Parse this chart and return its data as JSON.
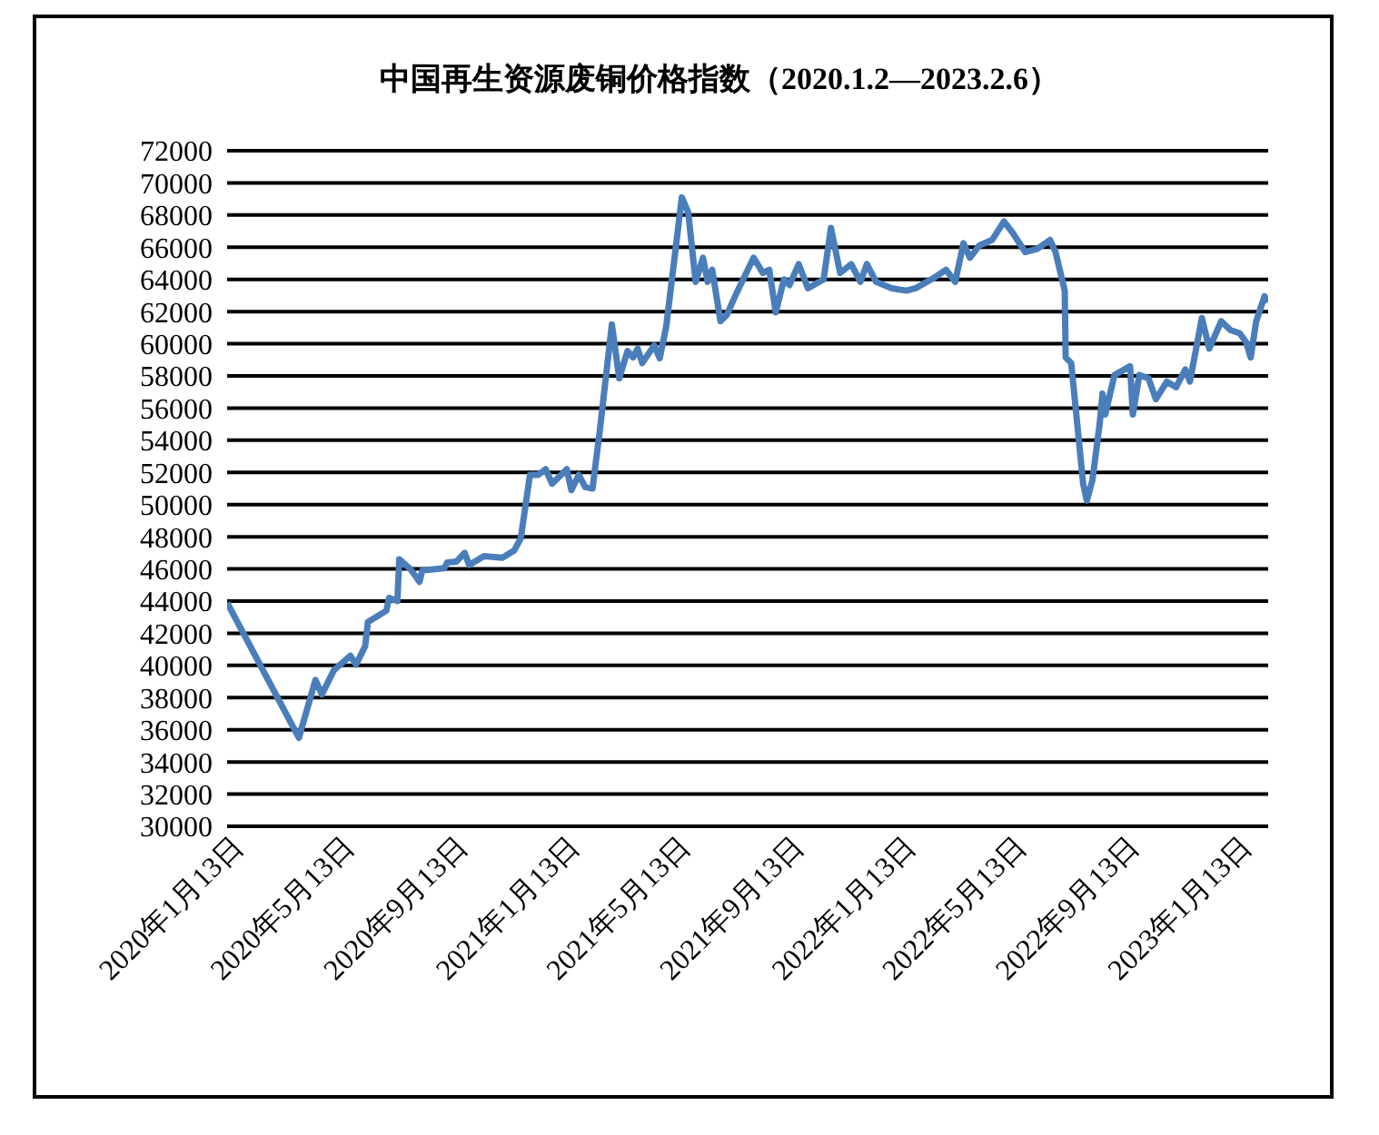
{
  "chart_data": {
    "type": "line",
    "title": "中国再生资源废铜价格指数（2020.1.2—2023.2.6）",
    "x": [
      "2020-01-02",
      "2020-03-20",
      "2020-04-07",
      "2020-04-14",
      "2020-04-27",
      "2020-05-15",
      "2020-05-21",
      "2020-05-31",
      "2020-06-03",
      "2020-06-23",
      "2020-06-26",
      "2020-07-05",
      "2020-07-07",
      "2020-07-19",
      "2020-07-29",
      "2020-08-01",
      "2020-08-25",
      "2020-08-28",
      "2020-09-07",
      "2020-09-16",
      "2020-09-21",
      "2020-10-07",
      "2020-10-27",
      "2020-11-09",
      "2020-11-16",
      "2020-11-26",
      "2020-12-05",
      "2020-12-13",
      "2020-12-20",
      "2021-01-05",
      "2021-01-10",
      "2021-01-18",
      "2021-01-25",
      "2021-02-02",
      "2021-02-10",
      "2021-02-23",
      "2021-03-03",
      "2021-03-12",
      "2021-03-18",
      "2021-03-23",
      "2021-03-28",
      "2021-04-10",
      "2021-04-16",
      "2021-04-23",
      "2021-05-10",
      "2021-05-17",
      "2021-05-25",
      "2021-06-02",
      "2021-06-07",
      "2021-06-12",
      "2021-06-21",
      "2021-06-28",
      "2021-07-08",
      "2021-07-27",
      "2021-08-06",
      "2021-08-13",
      "2021-08-20",
      "2021-08-29",
      "2021-09-04",
      "2021-09-14",
      "2021-09-24",
      "2021-10-11",
      "2021-10-19",
      "2021-10-29",
      "2021-11-10",
      "2021-11-20",
      "2021-11-27",
      "2021-12-07",
      "2021-12-24",
      "2022-01-09",
      "2022-01-19",
      "2022-02-08",
      "2022-02-21",
      "2022-03-03",
      "2022-03-12",
      "2022-03-19",
      "2022-03-29",
      "2022-04-12",
      "2022-04-25",
      "2022-05-05",
      "2022-05-18",
      "2022-05-31",
      "2022-06-14",
      "2022-06-20",
      "2022-06-30",
      "2022-07-01",
      "2022-07-07",
      "2022-07-20",
      "2022-07-24",
      "2022-07-30",
      "2022-08-07",
      "2022-08-10",
      "2022-08-13",
      "2022-08-23",
      "2022-09-09",
      "2022-09-12",
      "2022-09-19",
      "2022-09-29",
      "2022-10-07",
      "2022-10-19",
      "2022-10-29",
      "2022-11-08",
      "2022-11-13",
      "2022-11-26",
      "2022-12-04",
      "2022-12-17",
      "2022-12-27",
      "2023-01-06",
      "2023-01-13",
      "2023-01-18",
      "2023-01-24",
      "2023-02-02",
      "2023-02-06"
    ],
    "values": [
      43900,
      35500,
      39100,
      38200,
      39700,
      40600,
      40050,
      41200,
      42700,
      43400,
      44200,
      44000,
      46600,
      46000,
      45200,
      45900,
      46050,
      46400,
      46450,
      47000,
      46250,
      46800,
      46700,
      47150,
      47900,
      51850,
      51850,
      52200,
      51300,
      52200,
      50900,
      51850,
      51100,
      51000,
      54650,
      61200,
      57850,
      59550,
      59150,
      59700,
      58800,
      59900,
      59100,
      61050,
      69100,
      68150,
      63850,
      65350,
      63850,
      64600,
      61400,
      61800,
      63100,
      65350,
      64400,
      64600,
      61950,
      64000,
      63650,
      64950,
      63450,
      64000,
      67200,
      64400,
      64950,
      63850,
      64950,
      63850,
      63450,
      63300,
      63450,
      64100,
      64600,
      63850,
      66250,
      65350,
      66100,
      66450,
      67600,
      66850,
      65700,
      65900,
      66450,
      65700,
      63300,
      59150,
      58800,
      51300,
      50250,
      51500,
      55050,
      56900,
      55600,
      58050,
      58600,
      55600,
      58050,
      57850,
      56550,
      57650,
      57300,
      58400,
      57650,
      61600,
      59700,
      61400,
      60850,
      60650,
      60100,
      59150,
      61400,
      62950,
      62600
    ],
    "color": "#4a7ebb",
    "xlim": [
      "2020-01-02",
      "2023-02-06"
    ],
    "xticks": [
      {
        "value": "2020-01-13",
        "label": "2020年1月13日"
      },
      {
        "value": "2020-05-13",
        "label": "2020年5月13日"
      },
      {
        "value": "2020-09-13",
        "label": "2020年9月13日"
      },
      {
        "value": "2021-01-13",
        "label": "2021年1月13日"
      },
      {
        "value": "2021-05-13",
        "label": "2021年5月13日"
      },
      {
        "value": "2021-09-13",
        "label": "2021年9月13日"
      },
      {
        "value": "2022-01-13",
        "label": "2022年1月13日"
      },
      {
        "value": "2022-05-13",
        "label": "2022年5月13日"
      },
      {
        "value": "2022-09-13",
        "label": "2022年9月13日"
      },
      {
        "value": "2023-01-13",
        "label": "2023年1月13日"
      }
    ],
    "ylim": [
      30000,
      72000
    ],
    "yticks": [
      30000,
      32000,
      34000,
      36000,
      38000,
      40000,
      42000,
      44000,
      46000,
      48000,
      50000,
      52000,
      54000,
      56000,
      58000,
      60000,
      62000,
      64000,
      66000,
      68000,
      70000,
      72000
    ],
    "grid": "y",
    "legend": false,
    "marker": "none",
    "line_style": "solid"
  }
}
